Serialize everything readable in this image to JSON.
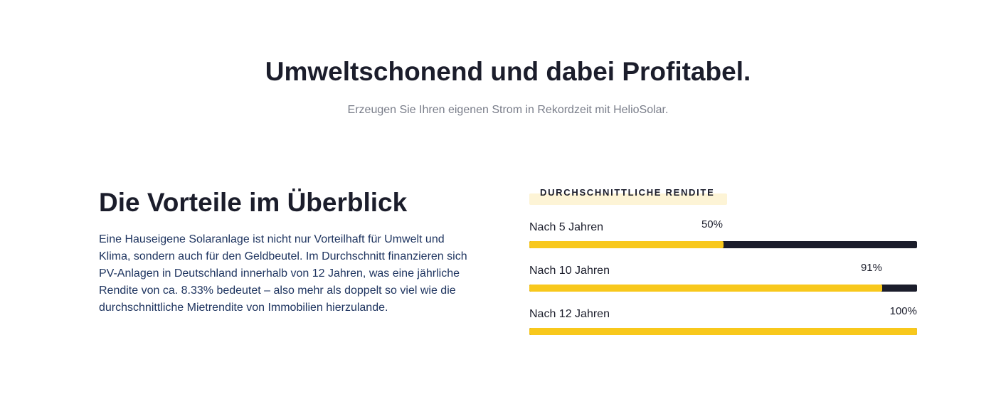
{
  "hero": {
    "title": "Umweltschonend und dabei Profitabel.",
    "subtitle": "Erzeugen Sie Ihren eigenen Strom in Rekordzeit mit HelioSolar."
  },
  "benefits": {
    "title": "Die Vorteile im Überblick",
    "text": "Eine Hauseigene Solaranlage ist nicht nur Vorteilhaft für Umwelt und Klima, sondern auch für den Geldbeutel. Im Durchschnitt finanzieren sich PV-Anlagen in Deutschland innerhalb von 12 Jahren, was eine jährliche Rendite von ca. 8.33% bedeutet – also mehr als doppelt so viel wie die durchschnittliche Mietrendite von Immobilien hierzulande."
  },
  "returns": {
    "label": "DURCHSCHNITTLICHE RENDITE",
    "bars": [
      {
        "label": "Nach 5 Jahren",
        "percent_text": "50%",
        "value": 50
      },
      {
        "label": "Nach 10 Jahren",
        "percent_text": "91%",
        "value": 91
      },
      {
        "label": "Nach 12 Jahren",
        "percent_text": "100%",
        "value": 100
      }
    ]
  },
  "colors": {
    "fill": "#f8c81c",
    "track": "#1b1d2b",
    "label_highlight": "#fdf4d6",
    "body_text": "#1f3560"
  }
}
